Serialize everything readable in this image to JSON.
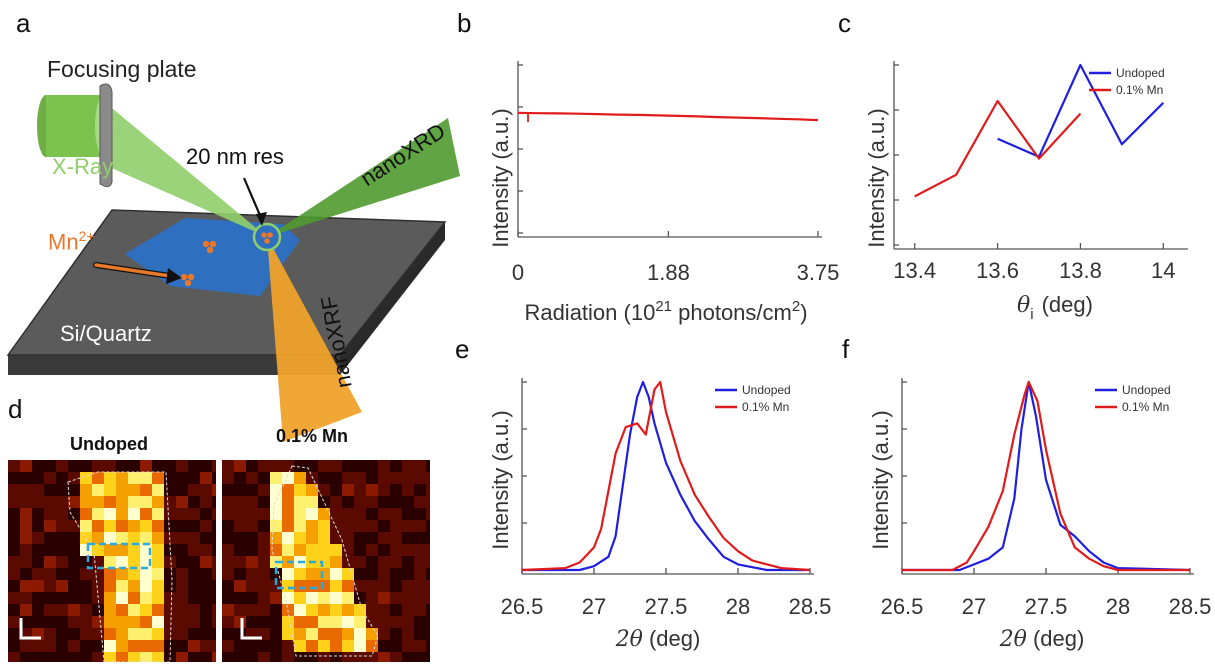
{
  "panel_labels": {
    "a": "a",
    "b": "b",
    "c": "c",
    "d": "d",
    "e": "e",
    "f": "f"
  },
  "schematic": {
    "focusing_plate": "Focusing plate",
    "xray": "X-Ray",
    "resolution": "20 nm res",
    "nanoxrd": "nanoXRD",
    "nanoxrf": "nanoXRF",
    "dopant_base": "Mn",
    "dopant_charge": "2+",
    "substrate": "Si/Quartz"
  },
  "maps": {
    "undoped_title": "Undoped",
    "doped_title": "0.1% Mn"
  },
  "colors": {
    "undoped": "#1f1fe0",
    "doped": "#e01b1b",
    "radiation": "#e01b1b",
    "roi": "#29a9e1",
    "xray_beam": "#8fce6a",
    "xrd_beam": "#4f9a2f",
    "xrf_beam": "#f0a22a",
    "flake": "#2e6fc0",
    "dopant": "#e8782a"
  },
  "chart_data": [
    {
      "id": "b",
      "type": "line",
      "xlabel_base": "Radiation (10",
      "xlabel_exp": "21",
      "xlabel_mid": " photons/cm",
      "xlabel_exp2": "2",
      "xlabel_end": ")",
      "ylabel": "Intensity (a.u.)",
      "xlim": [
        0,
        3.75
      ],
      "ylim": [
        0,
        1
      ],
      "xticks": [
        "0",
        "1.88",
        "3.75"
      ],
      "xtick_values": [
        0,
        1.88,
        3.75
      ],
      "series": [
        {
          "color": "#e01b1b",
          "x": [
            0,
            0.25,
            0.5,
            0.75,
            1.0,
            1.25,
            1.5,
            1.75,
            2.0,
            2.25,
            2.5,
            2.75,
            3.0,
            3.25,
            3.5,
            3.75
          ],
          "values": [
            0.715,
            0.713,
            0.712,
            0.71,
            0.708,
            0.705,
            0.703,
            0.7,
            0.697,
            0.694,
            0.69,
            0.687,
            0.684,
            0.68,
            0.677,
            0.672
          ]
        }
      ]
    },
    {
      "id": "c",
      "type": "line",
      "xlabel": "(deg)",
      "xlabel_sym": "θ",
      "xlabel_sub": "i",
      "ylabel": "Intensity (a.u.)",
      "xlim": [
        13.35,
        14.05
      ],
      "ylim": [
        0,
        1
      ],
      "xticks": [
        "13.4",
        "13.6",
        "13.8",
        "14"
      ],
      "xtick_values": [
        13.4,
        13.6,
        13.8,
        14
      ],
      "legend": "top-right",
      "series": [
        {
          "name": "Undoped",
          "color": "#1f1fe0",
          "x": [
            13.6,
            13.7,
            13.8,
            13.9,
            14.0
          ],
          "values": [
            0.59,
            0.49,
            1.0,
            0.56,
            0.79
          ]
        },
        {
          "name": "0.1% Mn",
          "color": "#e01b1b",
          "x": [
            13.4,
            13.5,
            13.6,
            13.7,
            13.8
          ],
          "values": [
            0.27,
            0.39,
            0.8,
            0.48,
            0.73
          ]
        }
      ]
    },
    {
      "id": "e",
      "type": "line",
      "xlabel": "(deg)",
      "xlabel_sym": "2θ",
      "ylabel": "Intensity (a.u.)",
      "xlim": [
        26.5,
        28.5
      ],
      "ylim": [
        0,
        1
      ],
      "xticks": [
        "26.5",
        "27",
        "27.5",
        "28",
        "28.5"
      ],
      "xtick_values": [
        26.5,
        27,
        27.5,
        28,
        28.5
      ],
      "legend": "top-right",
      "series": [
        {
          "name": "Undoped",
          "color": "#1f1fe0",
          "x": [
            26.5,
            26.9,
            27.0,
            27.1,
            27.15,
            27.2,
            27.25,
            27.3,
            27.34,
            27.38,
            27.42,
            27.5,
            27.6,
            27.7,
            27.8,
            27.9,
            28.0,
            28.2,
            28.5
          ],
          "values": [
            0.0,
            0.0,
            0.02,
            0.07,
            0.18,
            0.45,
            0.72,
            0.92,
            1.0,
            0.92,
            0.78,
            0.57,
            0.4,
            0.26,
            0.16,
            0.07,
            0.03,
            0.0,
            0.0
          ]
        },
        {
          "name": "0.1% Mn",
          "color": "#e01b1b",
          "x": [
            26.5,
            26.8,
            26.9,
            27.0,
            27.05,
            27.1,
            27.15,
            27.22,
            27.3,
            27.36,
            27.42,
            27.46,
            27.5,
            27.6,
            27.7,
            27.8,
            27.9,
            28.0,
            28.1,
            28.3,
            28.5
          ],
          "values": [
            0.0,
            0.01,
            0.04,
            0.12,
            0.22,
            0.42,
            0.62,
            0.76,
            0.78,
            0.72,
            0.96,
            1.0,
            0.84,
            0.58,
            0.4,
            0.28,
            0.17,
            0.1,
            0.05,
            0.01,
            0.0
          ]
        }
      ]
    },
    {
      "id": "f",
      "type": "line",
      "xlabel": "(deg)",
      "xlabel_sym": "2θ",
      "ylabel": "Intensity (a.u.)",
      "xlim": [
        26.5,
        28.5
      ],
      "ylim": [
        0,
        1
      ],
      "xticks": [
        "26.5",
        "27",
        "27.5",
        "28",
        "28.5"
      ],
      "xtick_values": [
        26.5,
        27,
        27.5,
        28,
        28.5
      ],
      "legend": "top-right",
      "series": [
        {
          "name": "Undoped",
          "color": "#1f1fe0",
          "x": [
            26.5,
            26.9,
            27.0,
            27.1,
            27.2,
            27.28,
            27.33,
            27.38,
            27.43,
            27.5,
            27.6,
            27.7,
            27.8,
            27.9,
            28.0,
            28.5
          ],
          "values": [
            0.0,
            0.0,
            0.03,
            0.06,
            0.12,
            0.38,
            0.75,
            1.0,
            0.82,
            0.48,
            0.24,
            0.18,
            0.1,
            0.04,
            0.01,
            0.0
          ]
        },
        {
          "name": "0.1% Mn",
          "color": "#e01b1b",
          "x": [
            26.5,
            26.85,
            26.95,
            27.0,
            27.1,
            27.2,
            27.28,
            27.35,
            27.38,
            27.44,
            27.5,
            27.6,
            27.7,
            27.8,
            27.9,
            28.0,
            28.5
          ],
          "values": [
            0.0,
            0.0,
            0.04,
            0.1,
            0.23,
            0.42,
            0.72,
            0.93,
            1.0,
            0.9,
            0.64,
            0.3,
            0.12,
            0.06,
            0.02,
            0.0,
            0.0
          ]
        }
      ]
    }
  ]
}
